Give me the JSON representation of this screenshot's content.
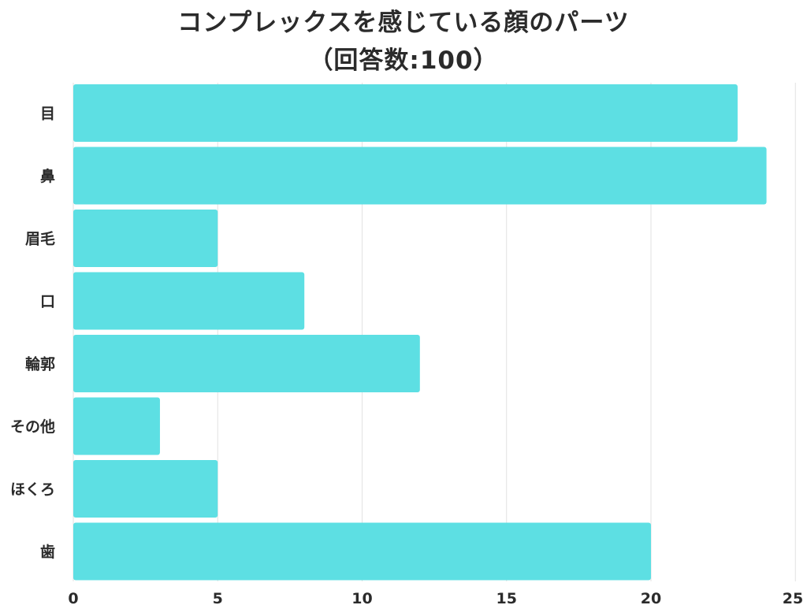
{
  "chart_data": {
    "type": "bar",
    "orientation": "horizontal",
    "title": "コンプレックスを感じている顔のパーツ",
    "subtitle": "（回答数:100）",
    "categories": [
      "目",
      "鼻",
      "眉毛",
      "口",
      "輪郭",
      "その他",
      "ほくろ",
      "歯"
    ],
    "values": [
      23,
      24,
      5,
      8,
      12,
      3,
      5,
      20
    ],
    "xlim": [
      0,
      25
    ],
    "xticks": [
      0,
      5,
      10,
      15,
      20,
      25
    ],
    "xlabel": "",
    "ylabel": "",
    "grid": "vertical",
    "legend": "none",
    "bar_color": "#5ddfe3",
    "grid_color": "#e2e2e2",
    "text_color": "#2b2b2b"
  }
}
